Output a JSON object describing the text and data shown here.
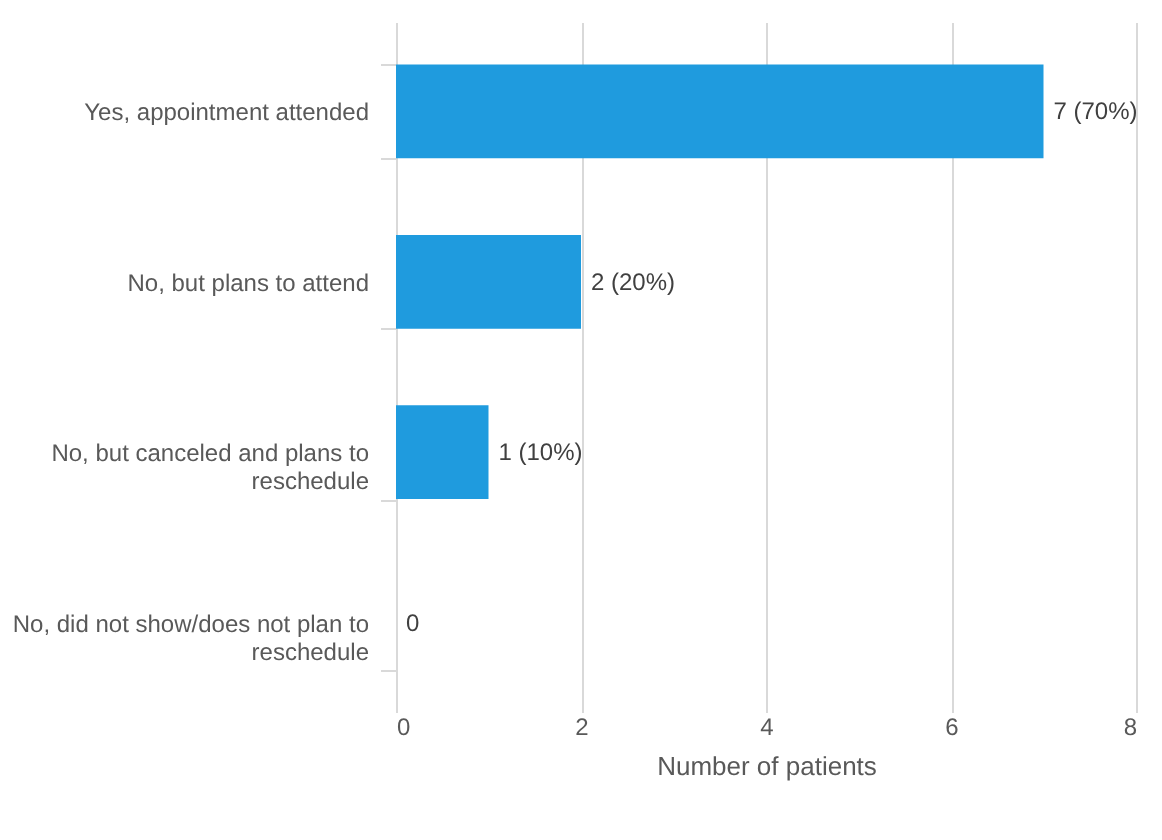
{
  "chart_data": {
    "type": "bar",
    "orientation": "horizontal",
    "categories": [
      "Yes, appointment attended",
      "No, but plans to attend",
      "No, but canceled and plans to reschedule",
      "No, did not show/does not plan to reschedule"
    ],
    "values": [
      7,
      2,
      1,
      0
    ],
    "value_labels": [
      "7 (70%)",
      "2 (20%)",
      "1 (10%)",
      "0"
    ],
    "color": "#1f9bde",
    "xlabel": "Number of patients",
    "xlim": [
      0,
      8
    ],
    "xticks": [
      0,
      2,
      4,
      6,
      8
    ],
    "grid": "x"
  }
}
